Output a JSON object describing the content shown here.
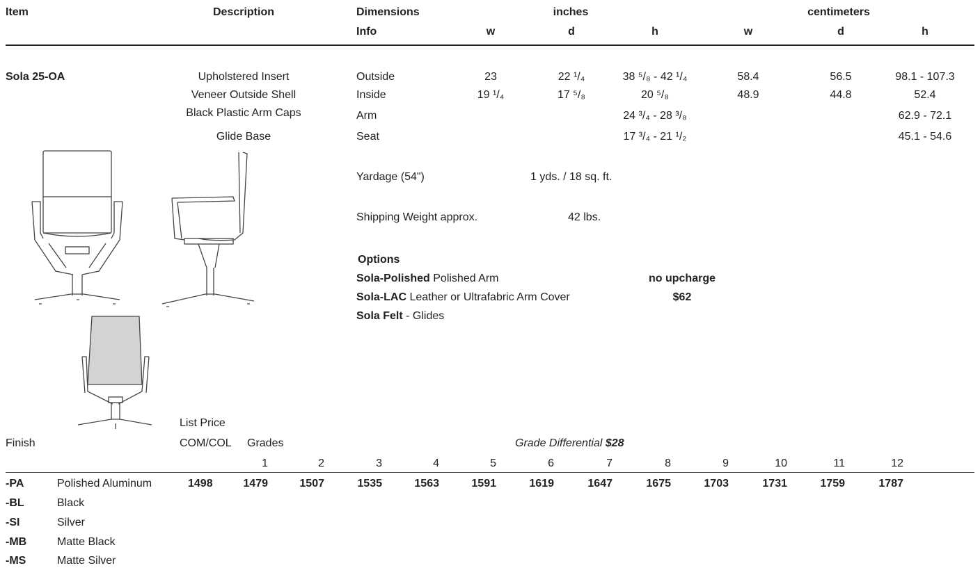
{
  "header": {
    "item": "Item",
    "description": "Description",
    "dimensions": "Dimensions",
    "info": "Info",
    "inches": "inches",
    "centimeters": "centimeters",
    "w": "w",
    "d": "d",
    "h": "h"
  },
  "product": {
    "name": "Sola 25-OA",
    "descriptions": [
      "Upholstered Insert",
      "Veneer Outside Shell",
      "Black Plastic Arm Caps",
      "Glide Base"
    ],
    "rows": [
      {
        "info": "Outside",
        "in_w": "23",
        "in_d": "22 ¹/₄",
        "in_h": "38 ⁵/₈ - 42 ¹/₄",
        "cm_w": "58.4",
        "cm_d": "56.5",
        "cm_h": "98.1 - 107.3"
      },
      {
        "info": "Inside",
        "in_w": "19 ¹/₄",
        "in_d": "17 ⁵/₈",
        "in_h": "20 ⁵/₈",
        "cm_w": "48.9",
        "cm_d": "44.8",
        "cm_h": "52.4"
      },
      {
        "info": "Arm",
        "in_w": "",
        "in_d": "",
        "in_h": "24 ³/₄ - 28 ³/₈",
        "cm_w": "",
        "cm_d": "",
        "cm_h": "62.9 - 72.1"
      },
      {
        "info": "Seat",
        "in_w": "",
        "in_d": "",
        "in_h": "17 ³/₄ - 21 ¹/₂",
        "cm_w": "",
        "cm_d": "",
        "cm_h": "45.1 - 54.6"
      }
    ]
  },
  "yardage": {
    "label": "Yardage (54\")",
    "value": "1 yds. / 18 sq. ft."
  },
  "shipping": {
    "label": "Shipping Weight approx.",
    "value": "42 lbs."
  },
  "options": {
    "title": "Options",
    "items": [
      {
        "code": "Sola-Polished",
        "desc": " Polished Arm",
        "price": "no upcharge"
      },
      {
        "code": "Sola-LAC",
        "desc": "  Leather or Ultrafabric Arm Cover",
        "price": "$62"
      },
      {
        "code": "Sola Felt",
        "desc": " - Glides",
        "price": ""
      }
    ]
  },
  "pricing": {
    "finish_label": "Finish",
    "list_price": "List Price",
    "com_col": "COM/COL",
    "grades": "Grades",
    "grade_diff_label": "Grade Differential",
    "grade_diff_value": "$28",
    "grade_numbers": [
      "1",
      "2",
      "3",
      "4",
      "5",
      "6",
      "7",
      "8",
      "9",
      "10",
      "11",
      "12"
    ],
    "com_price": "1498",
    "grade_prices": [
      "1479",
      "1507",
      "1535",
      "1563",
      "1591",
      "1619",
      "1647",
      "1675",
      "1703",
      "1731",
      "1759",
      "1787"
    ]
  },
  "finishes": [
    {
      "code": "-PA",
      "name": "Polished Aluminum"
    },
    {
      "code": "-BL",
      "name": "Black"
    },
    {
      "code": "-SI",
      "name": "Silver"
    },
    {
      "code": "-MB",
      "name": "Matte Black"
    },
    {
      "code": "-MS",
      "name": "Matte Silver"
    }
  ]
}
